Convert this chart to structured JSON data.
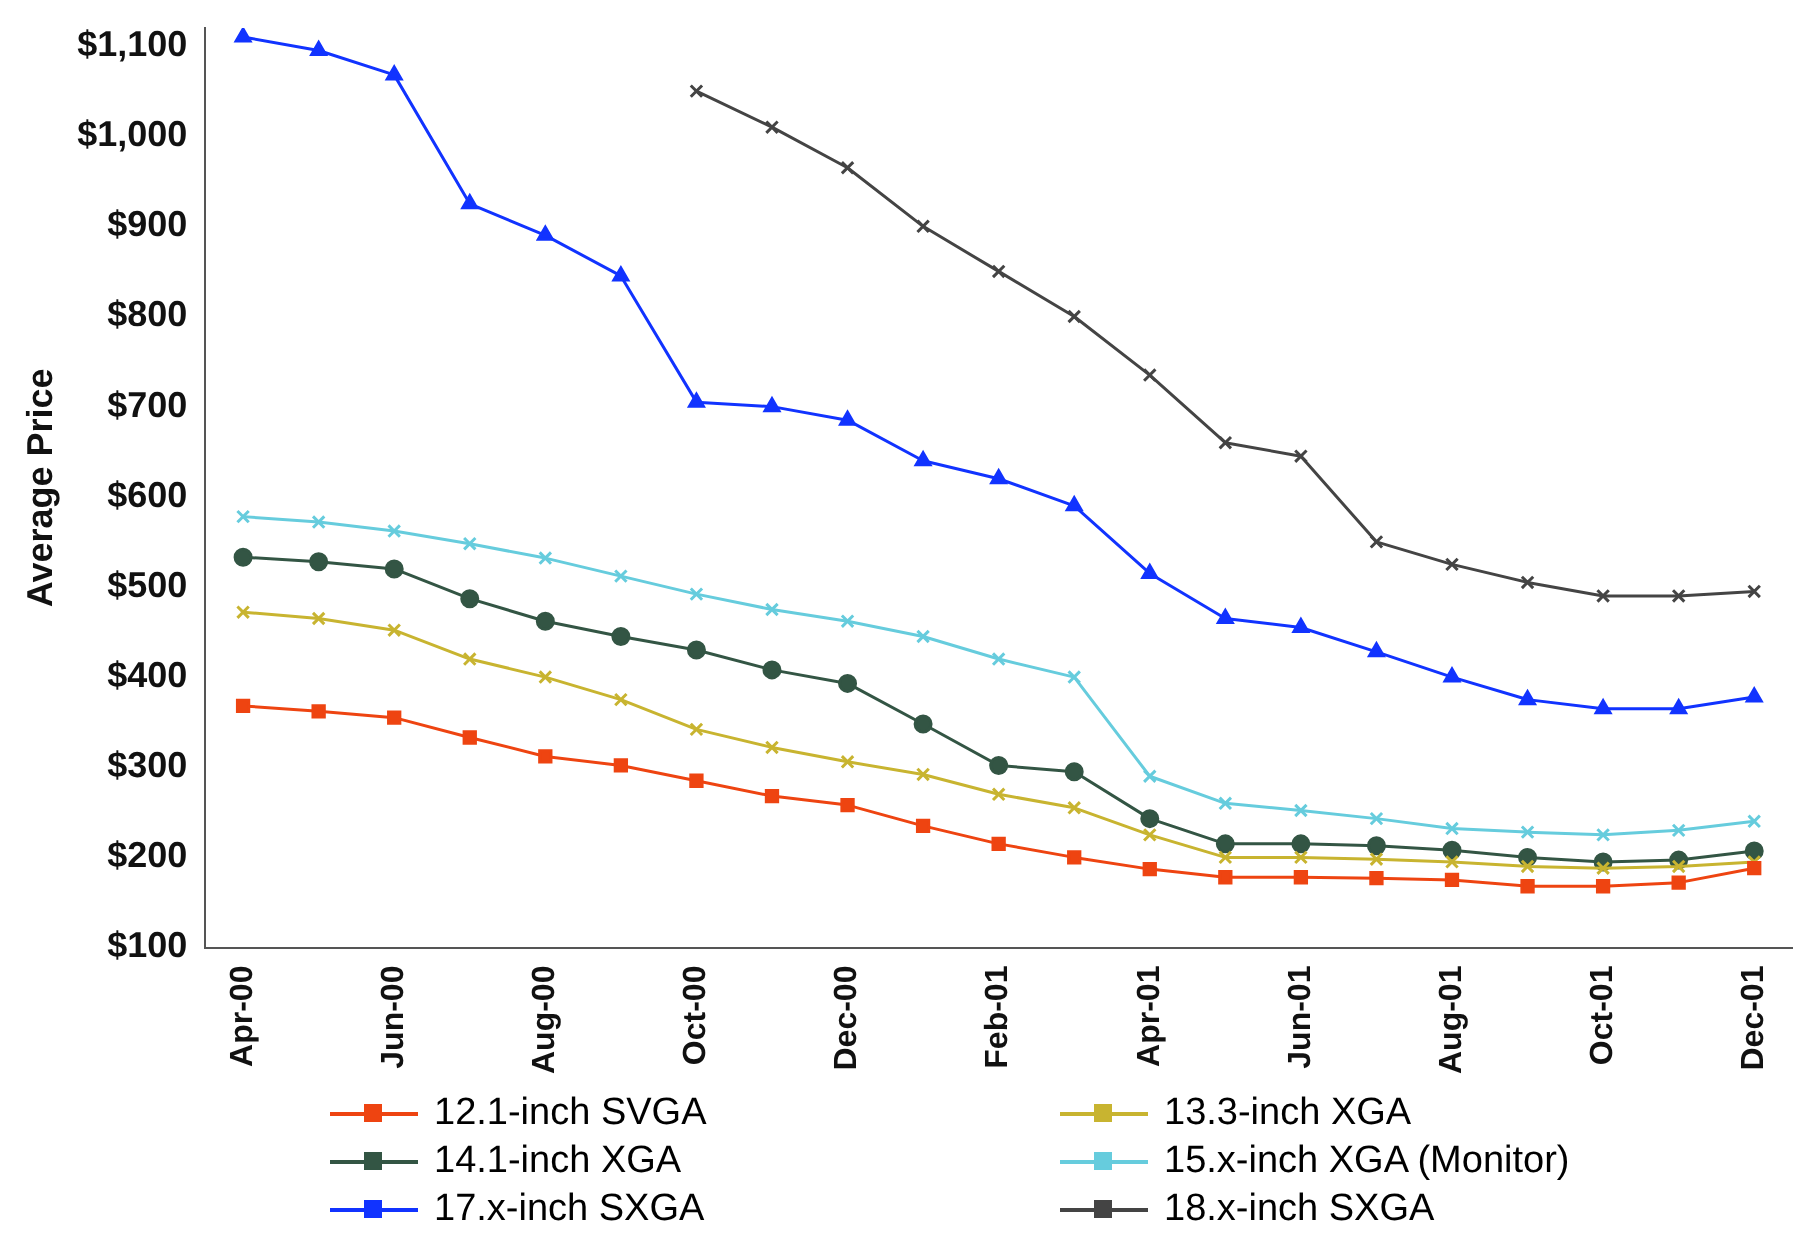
{
  "chart_data": {
    "type": "line",
    "ylabel": "Average Price",
    "categories": [
      "Apr-00",
      null,
      "Jun-00",
      null,
      "Aug-00",
      null,
      "Oct-00",
      null,
      "Dec-00",
      null,
      "Feb-01",
      null,
      "Apr-01",
      null,
      "Jun-01",
      null,
      "Aug-01",
      null,
      "Oct-01",
      null,
      "Dec-01"
    ],
    "series": [
      {
        "name": "12.1-inch SVGA",
        "color": "#ee4411",
        "marker": "square",
        "values": [
          368,
          362,
          355,
          333,
          312,
          302,
          285,
          268,
          258,
          235,
          215,
          200,
          187,
          178,
          178,
          177,
          175,
          168,
          168,
          172,
          188
        ]
      },
      {
        "name": "13.3-inch XGA",
        "color": "#c8b430",
        "marker": "cross",
        "values": [
          472,
          465,
          452,
          420,
          400,
          375,
          342,
          322,
          306,
          292,
          270,
          255,
          225,
          200,
          200,
          198,
          195,
          190,
          188,
          190,
          195
        ]
      },
      {
        "name": "14.1-inch XGA",
        "color": "#335544",
        "marker": "circle",
        "values": [
          533,
          528,
          520,
          487,
          462,
          445,
          430,
          408,
          393,
          348,
          302,
          295,
          243,
          215,
          215,
          213,
          208,
          200,
          195,
          197,
          207
        ]
      },
      {
        "name": "15.x-inch XGA (Monitor)",
        "color": "#66ccdd",
        "marker": "cross",
        "values": [
          578,
          572,
          562,
          548,
          532,
          512,
          492,
          475,
          462,
          445,
          420,
          400,
          290,
          260,
          252,
          243,
          232,
          228,
          225,
          230,
          240
        ]
      },
      {
        "name": "17.x-inch SXGA",
        "color": "#1133ff",
        "marker": "triangle",
        "values": [
          1110,
          1095,
          1068,
          925,
          890,
          845,
          705,
          700,
          685,
          640,
          620,
          590,
          515,
          465,
          455,
          428,
          400,
          375,
          365,
          365,
          378
        ]
      },
      {
        "name": "18.x-inch SXGA",
        "color": "#444444",
        "marker": "cross",
        "values": [
          null,
          null,
          null,
          null,
          null,
          null,
          1050,
          1010,
          965,
          900,
          850,
          800,
          735,
          660,
          645,
          550,
          525,
          505,
          490,
          490,
          495
        ]
      }
    ],
    "ylim": [
      100,
      1120
    ],
    "yticks": [
      {
        "value": 100,
        "label": "$100"
      },
      {
        "value": 200,
        "label": "$200"
      },
      {
        "value": 300,
        "label": "$300"
      },
      {
        "value": 400,
        "label": "$400"
      },
      {
        "value": 500,
        "label": "$500"
      },
      {
        "value": 600,
        "label": "$600"
      },
      {
        "value": 700,
        "label": "$700"
      },
      {
        "value": 800,
        "label": "$800"
      },
      {
        "value": 900,
        "label": "$900"
      },
      {
        "value": 1000,
        "label": "$1,000"
      },
      {
        "value": 1100,
        "label": "$1,100"
      }
    ],
    "grid": false,
    "legend": "bottom",
    "line_style": "solid"
  }
}
